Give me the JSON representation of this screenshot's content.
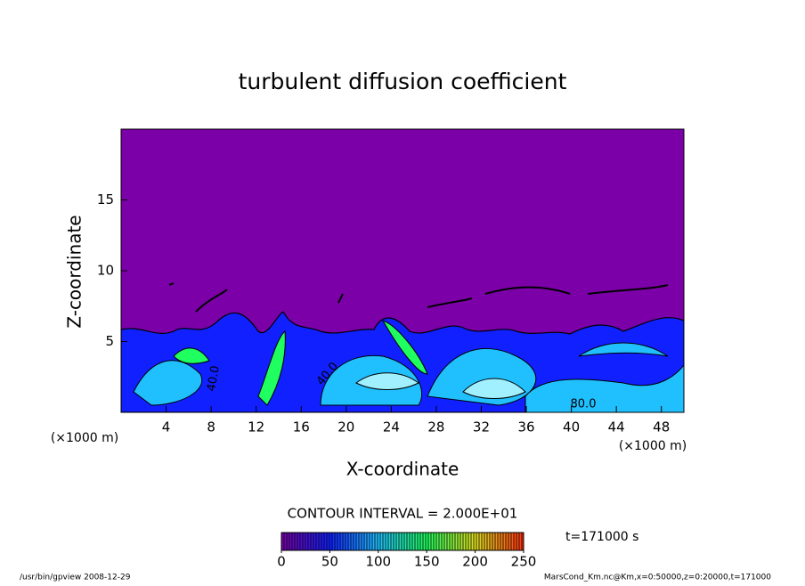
{
  "chart_data": {
    "type": "contour",
    "title": "turbulent diffusion coefficient",
    "x_label": "X-coordinate",
    "y_label": "Z-coordinate",
    "x_unit": "(×1000 m)",
    "y_unit": "(×1000 m)",
    "xlim": [
      0,
      50
    ],
    "xticks": [
      4,
      8,
      12,
      16,
      20,
      24,
      28,
      32,
      36,
      40,
      44,
      48
    ],
    "ylim": [
      0,
      20
    ],
    "yticks": [
      5,
      10,
      15
    ],
    "background_color": "#7b00a8",
    "contour_labels": [
      {
        "value": 40,
        "label": "40.0"
      },
      {
        "value": 40,
        "label": "40.0"
      },
      {
        "value": 80,
        "label": "80.0"
      }
    ],
    "contour_interval": "CONTOUR INTERVAL = 2.000E+01",
    "colorbar": {
      "lim": [
        0,
        250
      ],
      "ticks": [
        0,
        50,
        100,
        150,
        200,
        250
      ],
      "colors": [
        "#7b00a8",
        "#1020ff",
        "#20c0ff",
        "#20ff60",
        "#e0e020",
        "#ff3010"
      ]
    },
    "time_label": "t=171000 s",
    "footer_left": "/usr/bin/gpview   2008-12-29",
    "footer_right": "MarsCond_Km.nc@Km,x=0:50000,z=0:20000,t=171000"
  }
}
